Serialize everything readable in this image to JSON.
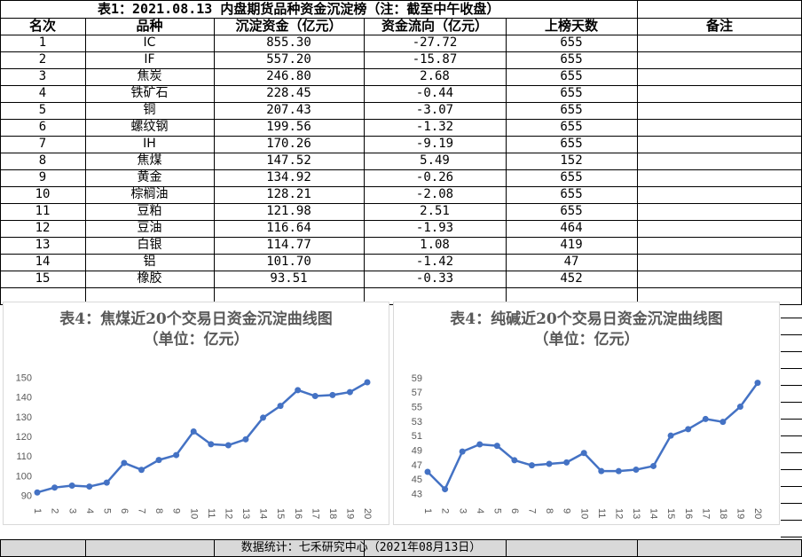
{
  "table": {
    "title": "表1：2021.08.13 内盘期货品种资金沉淀榜（注：截至中午收盘）",
    "headers": [
      "名次",
      "品种",
      "沉淀资金（亿元）",
      "资金流向（亿元）",
      "上榜天数",
      "备注"
    ],
    "rows": [
      {
        "rank": "1",
        "name": "IC",
        "capital": "855.30",
        "flow": "-27.72",
        "days": "655"
      },
      {
        "rank": "2",
        "name": "IF",
        "capital": "557.20",
        "flow": "-15.87",
        "days": "655"
      },
      {
        "rank": "3",
        "name": "焦炭",
        "capital": "246.80",
        "flow": "2.68",
        "days": "655"
      },
      {
        "rank": "4",
        "name": "铁矿石",
        "capital": "228.45",
        "flow": "-0.44",
        "days": "655"
      },
      {
        "rank": "5",
        "name": "铜",
        "capital": "207.43",
        "flow": "-3.07",
        "days": "655"
      },
      {
        "rank": "6",
        "name": "螺纹钢",
        "capital": "199.56",
        "flow": "-1.32",
        "days": "655"
      },
      {
        "rank": "7",
        "name": "IH",
        "capital": "170.26",
        "flow": "-9.19",
        "days": "655"
      },
      {
        "rank": "8",
        "name": "焦煤",
        "capital": "147.52",
        "flow": "5.49",
        "days": "152"
      },
      {
        "rank": "9",
        "name": "黄金",
        "capital": "134.92",
        "flow": "-0.26",
        "days": "655"
      },
      {
        "rank": "10",
        "name": "棕榈油",
        "capital": "128.21",
        "flow": "-2.08",
        "days": "655"
      },
      {
        "rank": "11",
        "name": "豆粕",
        "capital": "121.98",
        "flow": "2.51",
        "days": "655"
      },
      {
        "rank": "12",
        "name": "豆油",
        "capital": "116.64",
        "flow": "-1.93",
        "days": "464"
      },
      {
        "rank": "13",
        "name": "白银",
        "capital": "114.77",
        "flow": "1.08",
        "days": "419"
      },
      {
        "rank": "14",
        "name": "铝",
        "capital": "101.70",
        "flow": "-1.42",
        "days": "47"
      },
      {
        "rank": "15",
        "name": "橡胶",
        "capital": "93.51",
        "flow": "-0.33",
        "days": "452"
      }
    ]
  },
  "footer": "数据统计：七禾研究中心（2021年08月13日）",
  "chart_data": [
    {
      "type": "line",
      "title": "表4：焦煤近20个交易日资金沉淀曲线图",
      "subtitle": "（单位：亿元）",
      "x": [
        "1",
        "2",
        "3",
        "4",
        "5",
        "6",
        "7",
        "8",
        "9",
        "10",
        "11",
        "12",
        "13",
        "14",
        "15",
        "16",
        "17",
        "18",
        "19",
        "20"
      ],
      "series": [
        {
          "values": [
            91.5,
            94,
            95,
            94.5,
            96.5,
            106.5,
            103,
            108,
            110.5,
            122.5,
            116,
            115.5,
            118.5,
            129.5,
            135.5,
            143.5,
            140.5,
            141,
            142.5,
            147.5
          ]
        }
      ],
      "yticks": [
        90,
        100,
        110,
        120,
        130,
        140,
        150
      ],
      "ylim": [
        88,
        152
      ],
      "color": "#4472c4",
      "grid": false
    },
    {
      "type": "line",
      "title": "表4：纯碱近20个交易日资金沉淀曲线图",
      "subtitle": "（单位：亿元）",
      "x": [
        "1",
        "2",
        "3",
        "4",
        "5",
        "6",
        "7",
        "8",
        "9",
        "10",
        "11",
        "12",
        "13",
        "14",
        "15",
        "16",
        "17",
        "18",
        "19",
        "20"
      ],
      "series": [
        {
          "values": [
            46,
            43.6,
            48.8,
            49.8,
            49.6,
            47.6,
            46.9,
            47.1,
            47.3,
            48.6,
            46.1,
            46.1,
            46.3,
            46.8,
            51,
            51.9,
            53.3,
            52.9,
            55,
            58.3
          ]
        }
      ],
      "yticks": [
        43,
        45,
        47,
        49,
        51,
        53,
        55,
        57,
        59
      ],
      "ylim": [
        42.2,
        59.6
      ],
      "color": "#4472c4",
      "grid": false
    }
  ]
}
